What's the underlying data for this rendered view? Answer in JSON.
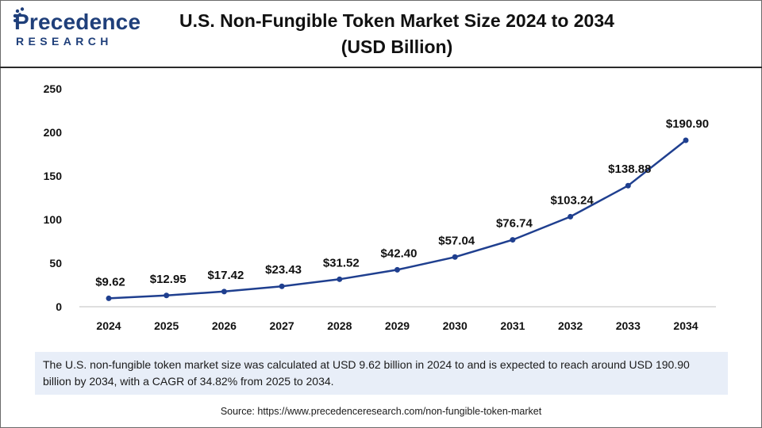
{
  "brand": {
    "name": "Precedence",
    "sub": "RESEARCH"
  },
  "header": {
    "title_line1": "U.S. Non-Fungible Token Market Size 2024 to 2034",
    "title_line2": "(USD Billion)"
  },
  "colors": {
    "line": "#1f3f8f",
    "brand": "#1f3f7a",
    "summary_bg": "#e8eef8"
  },
  "chart_data": {
    "type": "line",
    "title": "U.S. Non-Fungible Token Market Size 2024 to 2034 (USD Billion)",
    "xlabel": "",
    "ylabel": "",
    "categories": [
      "2024",
      "2025",
      "2026",
      "2027",
      "2028",
      "2029",
      "2030",
      "2031",
      "2032",
      "2033",
      "2034"
    ],
    "values": [
      9.62,
      12.95,
      17.42,
      23.43,
      31.52,
      42.4,
      57.04,
      76.74,
      103.24,
      138.88,
      190.9
    ],
    "labels": [
      "$9.62",
      "$12.95",
      "$17.42",
      "$23.43",
      "$31.52",
      "$42.40",
      "$57.04",
      "$76.74",
      "$103.24",
      "$138.88",
      "$190.90"
    ],
    "ylim": [
      0,
      250
    ],
    "yticks": [
      0,
      50,
      100,
      150,
      200,
      250
    ],
    "grid": false,
    "legend": "none"
  },
  "summary": {
    "text": "The U.S. non-fungible token market size was calculated at USD 9.62 billion in 2024 to and is expected to reach around USD 190.90 billion by 2034, with a CAGR of 34.82% from 2025 to 2034."
  },
  "source": {
    "text": "Source: https://www.precedenceresearch.com/non-fungible-token-market"
  }
}
